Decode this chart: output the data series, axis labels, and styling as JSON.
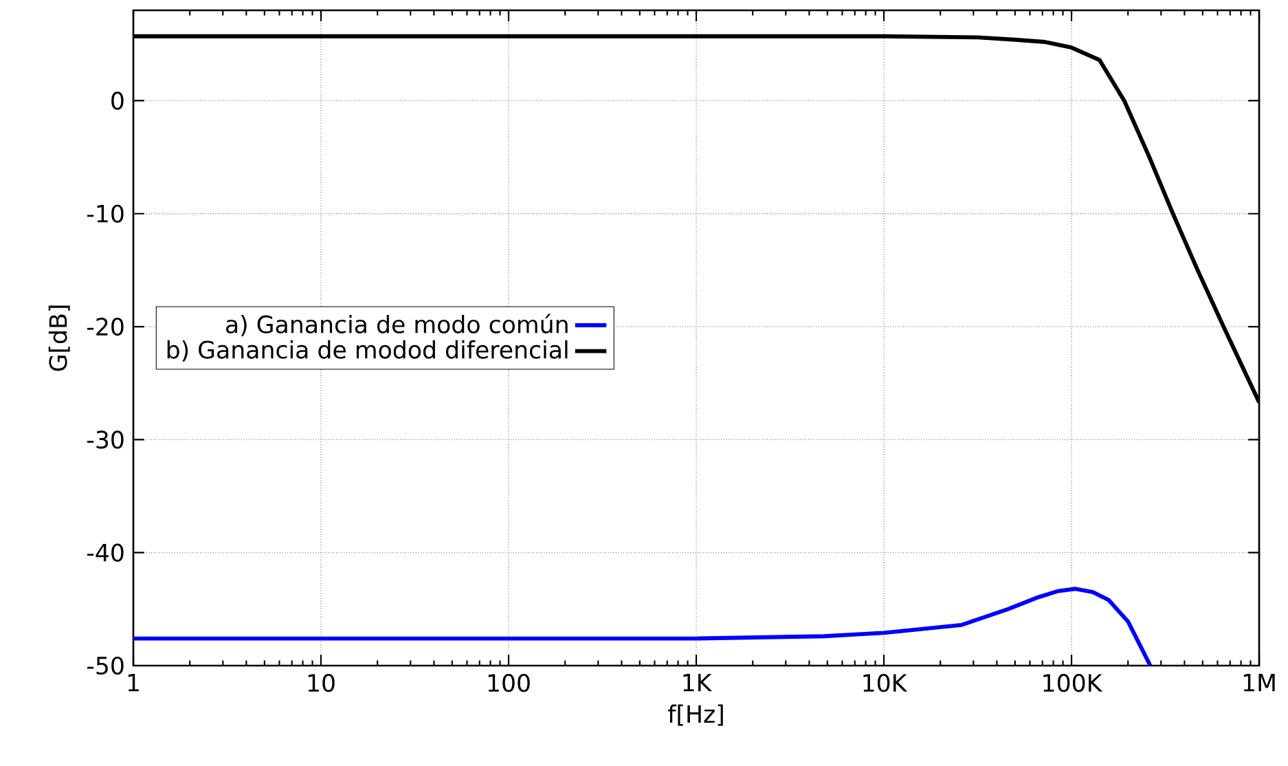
{
  "chart_data": {
    "type": "line",
    "xlabel": "f[Hz]",
    "ylabel": "G[dB]",
    "log": "x",
    "grid": true,
    "legend": "left",
    "line_style": "solid",
    "marker": "none",
    "xlim": [
      1,
      1000000
    ],
    "ylim": [
      -50,
      8
    ],
    "xticks": [
      1,
      10,
      100,
      {
        "value": 1000,
        "label": "1K"
      },
      {
        "value": 10000,
        "label": "10K"
      },
      {
        "value": 100000,
        "label": "100K"
      },
      {
        "value": 1000000,
        "label": "1M"
      }
    ],
    "yticks": [
      -50,
      -40,
      -30,
      -20,
      -10,
      0
    ],
    "series": [
      {
        "name": "a) Ganancia de modo común",
        "color": "#0000ff",
        "x": [
          1,
          10,
          100,
          1000,
          4800,
          10000,
          26000,
          46000,
          65000,
          85000,
          105000,
          130000,
          158000,
          200000,
          263000
        ],
        "values": [
          -47.6,
          -47.6,
          -47.6,
          -47.6,
          -47.4,
          -47.1,
          -46.4,
          -45.0,
          -44.0,
          -43.4,
          -43.2,
          -43.5,
          -44.2,
          -46.1,
          -50
        ]
      },
      {
        "name": "b) Ganancia de modod diferencial",
        "color": "#000000",
        "x": [
          1,
          10,
          100,
          1000,
          10000,
          31600,
          50000,
          72000,
          100000,
          141000,
          191000,
          260000,
          347000,
          470000,
          646000,
          1000000
        ],
        "values": [
          5.7,
          5.7,
          5.7,
          5.7,
          5.7,
          5.6,
          5.4,
          5.2,
          4.7,
          3.6,
          0,
          -5,
          -10,
          -15,
          -20,
          -26.7
        ]
      }
    ]
  }
}
